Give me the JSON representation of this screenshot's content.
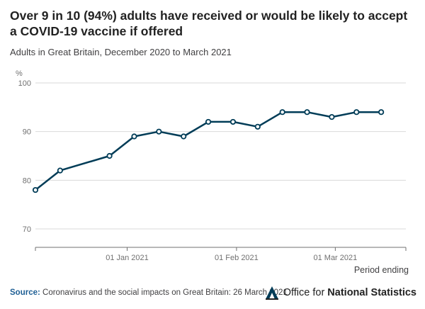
{
  "title": "Over 9 in 10 (94%) adults have received or would be likely to accept a COVID-19 vaccine if offered",
  "subtitle": "Adults in Great Britain, December 2020 to March 2021",
  "footer": {
    "source_label": "Source:",
    "source_text": "Coronavirus and the social impacts on Great Britain: 26 March 2021",
    "logo_prefix": "Office for",
    "logo_bold": "National Statistics"
  },
  "colors": {
    "line": "#003c57",
    "grid": "#d9d9d9",
    "axis": "#707070"
  },
  "chart_data": {
    "type": "line",
    "title": "Over 9 in 10 (94%) adults have received or would be likely to accept a COVID-19 vaccine if offered",
    "subtitle": "Adults in Great Britain, December 2020 to March 2021",
    "ylabel": "%",
    "xlabel": "Period ending",
    "ylim": [
      70,
      100
    ],
    "yticks": [
      70,
      80,
      90,
      100
    ],
    "xlim": [
      "2020-12-06",
      "2021-03-21"
    ],
    "xticks": [
      {
        "date": "2021-01-01",
        "label": "01 Jan 2021"
      },
      {
        "date": "2021-02-01",
        "label": "01 Feb 2021"
      },
      {
        "date": "2021-03-01",
        "label": "01 Mar 2021"
      }
    ],
    "grid": true,
    "series": [
      {
        "points": [
          {
            "x": "2020-12-06",
            "y": 78
          },
          {
            "x": "2020-12-13",
            "y": 82
          },
          {
            "x": "2020-12-27",
            "y": 85
          },
          {
            "x": "2021-01-03",
            "y": 89
          },
          {
            "x": "2021-01-10",
            "y": 90
          },
          {
            "x": "2021-01-17",
            "y": 89
          },
          {
            "x": "2021-01-24",
            "y": 92
          },
          {
            "x": "2021-01-31",
            "y": 92
          },
          {
            "x": "2021-02-07",
            "y": 91
          },
          {
            "x": "2021-02-14",
            "y": 94
          },
          {
            "x": "2021-02-21",
            "y": 94
          },
          {
            "x": "2021-02-28",
            "y": 93
          },
          {
            "x": "2021-03-07",
            "y": 94
          },
          {
            "x": "2021-03-14",
            "y": 94
          }
        ]
      }
    ]
  }
}
